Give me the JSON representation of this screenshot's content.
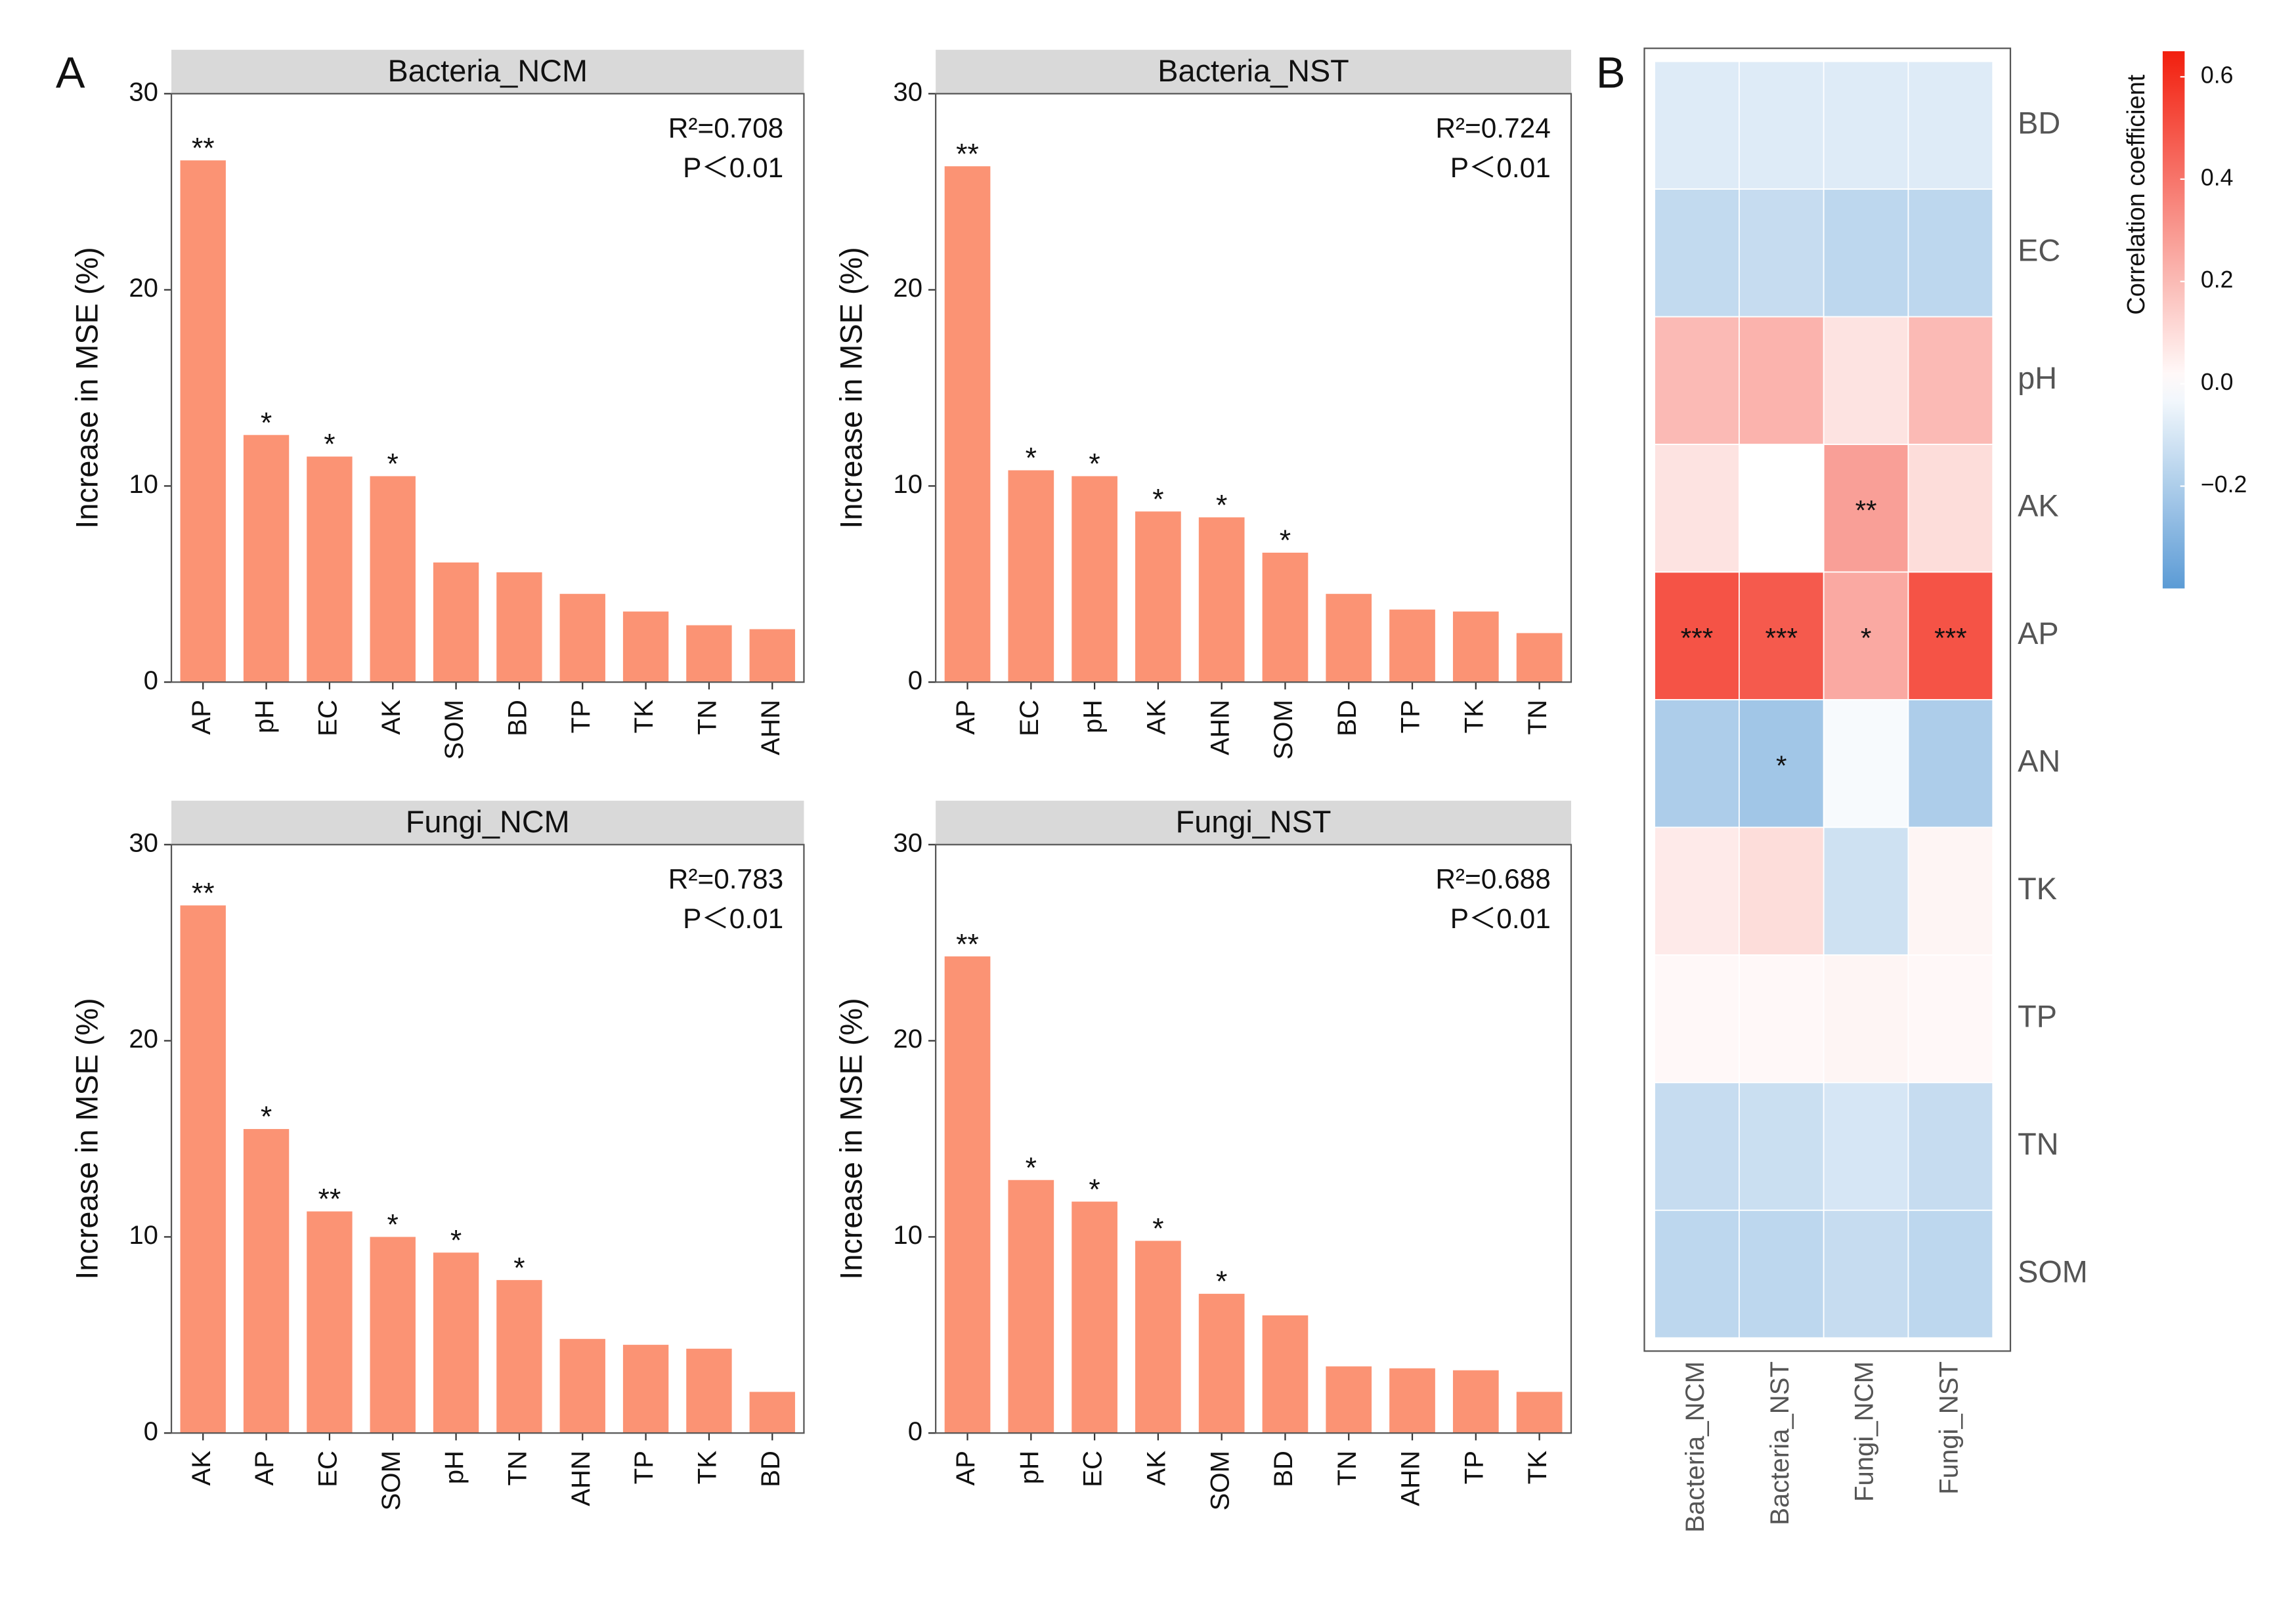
{
  "panel_labels": [
    "A",
    "B"
  ],
  "chart_data": [
    {
      "type": "bar",
      "title": "Bacteria_NCM",
      "ylabel": "Increase in MSE (%)",
      "categories": [
        "AP",
        "pH",
        "EC",
        "AK",
        "SOM",
        "BD",
        "TP",
        "TK",
        "TN",
        "AHN"
      ],
      "values": [
        26.6,
        12.6,
        11.5,
        10.5,
        6.1,
        5.6,
        4.5,
        3.6,
        2.9,
        2.7
      ],
      "significance": [
        "**",
        "*",
        "*",
        "*",
        null,
        null,
        null,
        null,
        null,
        null
      ],
      "stats": [
        "R²=0.708",
        "P＜0.01"
      ],
      "ylim": [
        0,
        30
      ],
      "yticks": [
        0,
        10,
        20,
        30
      ],
      "color": "#fb9374"
    },
    {
      "type": "bar",
      "title": "Bacteria_NST",
      "ylabel": "Increase in MSE (%)",
      "categories": [
        "AP",
        "EC",
        "pH",
        "AK",
        "AHN",
        "SOM",
        "BD",
        "TP",
        "TK",
        "TN"
      ],
      "values": [
        26.3,
        10.8,
        10.5,
        8.7,
        8.4,
        6.6,
        4.5,
        3.7,
        3.6,
        2.5
      ],
      "significance": [
        "**",
        "*",
        "*",
        "*",
        "*",
        "*",
        null,
        null,
        null,
        null
      ],
      "stats": [
        "R²=0.724",
        "P＜0.01"
      ],
      "ylim": [
        0,
        30
      ],
      "yticks": [
        0,
        10,
        20,
        30
      ],
      "color": "#fb9374"
    },
    {
      "type": "bar",
      "title": "Fungi_NCM",
      "ylabel": "Increase in MSE (%)",
      "categories": [
        "AK",
        "AP",
        "EC",
        "SOM",
        "pH",
        "TN",
        "AHN",
        "TP",
        "TK",
        "BD"
      ],
      "values": [
        26.9,
        15.5,
        11.3,
        10.0,
        9.2,
        7.8,
        4.8,
        4.5,
        4.3,
        2.1
      ],
      "significance": [
        "**",
        "*",
        "**",
        "*",
        "*",
        "*",
        null,
        null,
        null,
        null
      ],
      "stats": [
        "R²=0.783",
        "P＜0.01"
      ],
      "ylim": [
        0,
        30
      ],
      "yticks": [
        0,
        10,
        20,
        30
      ],
      "color": "#fb9374"
    },
    {
      "type": "bar",
      "title": "Fungi_NST",
      "ylabel": "Increase in MSE (%)",
      "categories": [
        "AP",
        "pH",
        "EC",
        "AK",
        "SOM",
        "BD",
        "TN",
        "AHN",
        "TP",
        "TK"
      ],
      "values": [
        24.3,
        12.9,
        11.8,
        9.8,
        7.1,
        6.0,
        3.4,
        3.3,
        3.2,
        2.1
      ],
      "significance": [
        "**",
        "*",
        "*",
        "*",
        "*",
        null,
        null,
        null,
        null,
        null
      ],
      "stats": [
        "R²=0.688",
        "P＜0.01"
      ],
      "ylim": [
        0,
        30
      ],
      "yticks": [
        0,
        10,
        20,
        30
      ],
      "color": "#fb9374"
    },
    {
      "type": "heatmap",
      "colorbar_title": "Correlation coefficient",
      "x_categories": [
        "Bacteria_NCM",
        "Bacteria_NST",
        "Fungi_NCM",
        "Fungi_NST"
      ],
      "y_categories": [
        "BD",
        "EC",
        "pH",
        "AK",
        "AP",
        "AN",
        "TK",
        "TP",
        "TN",
        "SOM"
      ],
      "values": [
        [
          -0.08,
          -0.08,
          -0.08,
          -0.08
        ],
        [
          -0.15,
          -0.14,
          -0.16,
          -0.16
        ],
        [
          0.2,
          0.22,
          0.08,
          0.2
        ],
        [
          0.08,
          0.0,
          0.28,
          0.1
        ],
        [
          0.5,
          0.48,
          0.25,
          0.5
        ],
        [
          -0.2,
          -0.23,
          -0.02,
          -0.2
        ],
        [
          0.06,
          0.1,
          -0.12,
          0.03
        ],
        [
          0.02,
          0.02,
          0.03,
          0.02
        ],
        [
          -0.14,
          -0.13,
          -0.1,
          -0.14
        ],
        [
          -0.16,
          -0.16,
          -0.14,
          -0.16
        ]
      ],
      "annotations": [
        [
          null,
          null,
          null,
          null
        ],
        [
          null,
          null,
          null,
          null
        ],
        [
          null,
          null,
          null,
          null
        ],
        [
          null,
          null,
          "**",
          null
        ],
        [
          "***",
          "***",
          "*",
          "***"
        ],
        [
          null,
          "*",
          null,
          null
        ],
        [
          null,
          null,
          null,
          null
        ],
        [
          null,
          null,
          null,
          null
        ],
        [
          null,
          null,
          null,
          null
        ],
        [
          null,
          null,
          null,
          null
        ]
      ],
      "zlim": [
        -0.4,
        0.65
      ],
      "zticks": [
        {
          "value": -0.2,
          "label": "−0.2"
        },
        {
          "value": 0,
          "label": "0.0"
        },
        0.2,
        0.4,
        0.6
      ],
      "colors": {
        "low": "#5b9bd5",
        "mid": "#ffffff",
        "high": "#f21f0e"
      }
    }
  ]
}
